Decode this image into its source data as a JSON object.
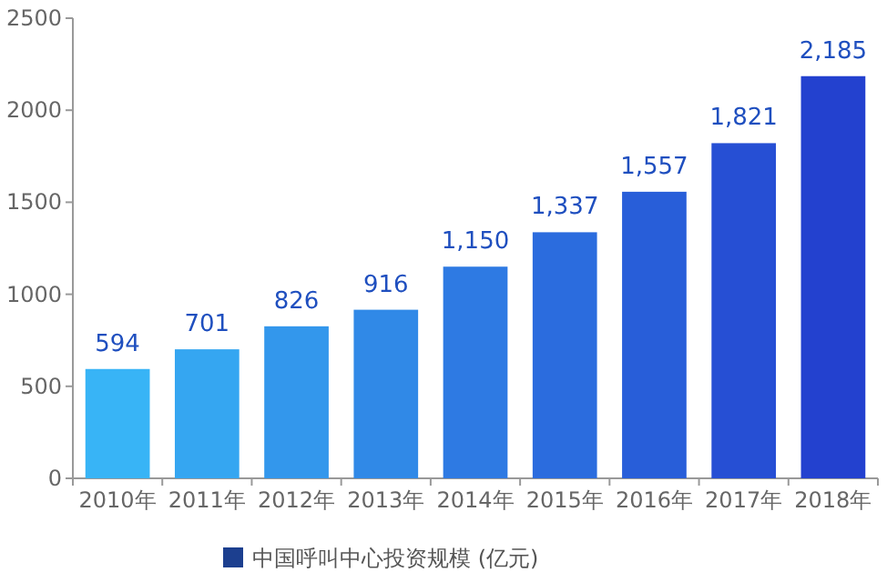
{
  "chart_data": {
    "type": "bar",
    "categories": [
      "2010年",
      "2011年",
      "2012年",
      "2013年",
      "2014年",
      "2015年",
      "2016年",
      "2017年",
      "2018年"
    ],
    "series": [
      {
        "name": "中国呼叫中心投资规模 (亿元)",
        "color": "#1c3f8f",
        "colors": [
          "#38b4f6",
          "#35a6f1",
          "#3397ec",
          "#3089e7",
          "#2e7ae3",
          "#2b6cde",
          "#285ed9",
          "#264fd4",
          "#2341cf"
        ],
        "values": [
          594,
          701,
          826,
          916,
          1150,
          1337,
          1557,
          1821,
          2185
        ],
        "value_labels": [
          "594",
          "701",
          "826",
          "916",
          "1,150",
          "1,337",
          "1,557",
          "1,821",
          "2,185"
        ]
      }
    ],
    "ylim": [
      0,
      2500
    ],
    "yticks": [
      0,
      500,
      1000,
      1500,
      2000,
      2500
    ],
    "grid": false,
    "legend": "bottom"
  }
}
